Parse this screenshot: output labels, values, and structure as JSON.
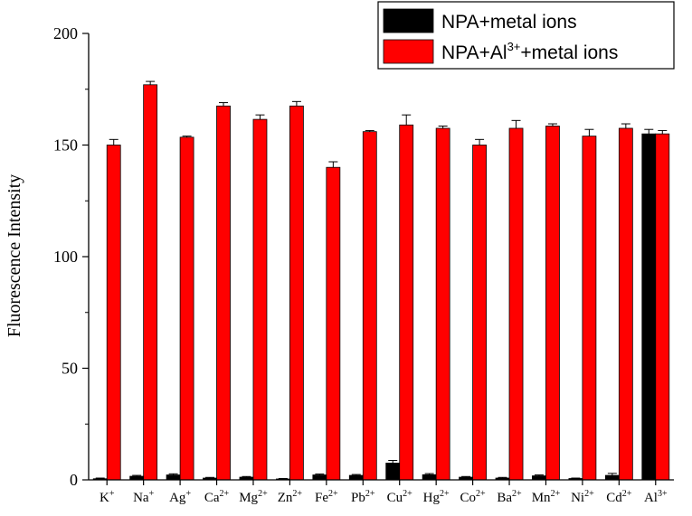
{
  "chart_data": {
    "type": "bar",
    "ylabel": "Fluorescence Intensity",
    "xlabel": "",
    "ylim": [
      0,
      200
    ],
    "yticks": [
      0,
      50,
      100,
      150,
      200
    ],
    "categories": [
      {
        "base": "K",
        "sup": "+"
      },
      {
        "base": "Na",
        "sup": "+"
      },
      {
        "base": "Ag",
        "sup": "+"
      },
      {
        "base": "Ca",
        "sup": "2+"
      },
      {
        "base": "Mg",
        "sup": "2+"
      },
      {
        "base": "Zn",
        "sup": "2+"
      },
      {
        "base": "Fe",
        "sup": "2+"
      },
      {
        "base": "Pb",
        "sup": "2+"
      },
      {
        "base": "Cu",
        "sup": "2+"
      },
      {
        "base": "Hg",
        "sup": "2+"
      },
      {
        "base": "Co",
        "sup": "2+"
      },
      {
        "base": "Ba",
        "sup": "2+"
      },
      {
        "base": "Mn",
        "sup": "2+"
      },
      {
        "base": "Ni",
        "sup": "2+"
      },
      {
        "base": "Cd",
        "sup": "2+"
      },
      {
        "base": "Al",
        "sup": "3+"
      }
    ],
    "legend_position": "top-right",
    "series": [
      {
        "legend": {
          "pre": "NPA+metal ions",
          "sup": "",
          "post": ""
        },
        "color": "#000000",
        "values": [
          0.5,
          1.6,
          2.2,
          0.8,
          1.2,
          0.4,
          2.2,
          2.0,
          7.5,
          2.3,
          1.2,
          0.8,
          1.8,
          0.6,
          2.0,
          155
        ],
        "errors": [
          0.3,
          0.4,
          0.5,
          0.3,
          0.3,
          0.2,
          0.4,
          0.4,
          1.2,
          0.5,
          0.3,
          0.3,
          0.4,
          0.2,
          0.9,
          2.0
        ]
      },
      {
        "legend": {
          "pre": "NPA+Al",
          "sup": "3+",
          "post": "+metal ions"
        },
        "color": "#ff0000",
        "values": [
          150,
          177,
          153.5,
          167.5,
          161.5,
          167.5,
          140,
          156,
          159,
          157.5,
          150,
          157.5,
          158.5,
          154,
          157.5,
          155
        ],
        "errors": [
          2.5,
          1.5,
          0.5,
          1.5,
          2.0,
          2.0,
          2.5,
          0.5,
          4.5,
          1.0,
          2.5,
          3.5,
          1.0,
          3.0,
          2.0,
          1.5
        ]
      }
    ]
  }
}
